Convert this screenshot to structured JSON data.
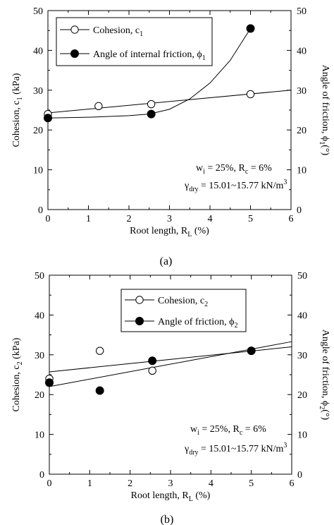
{
  "chart_data": [
    {
      "type": "scatter",
      "panel_label": "(a)",
      "xlabel": "Root length, R",
      "xlabel_sub": "L",
      "xlabel_suffix": " (%)",
      "ylabel_left": "Cohesion, c",
      "ylabel_left_sub": "1",
      "ylabel_left_suffix": " (kPa)",
      "ylabel_right": "Angle of friction, ϕ",
      "ylabel_right_sub": "1",
      "ylabel_right_suffix": "(°)",
      "xlim": [
        0,
        6
      ],
      "ylim_left": [
        0,
        50
      ],
      "ylim_right": [
        0,
        50
      ],
      "xticks": [
        "0",
        "1",
        "2",
        "3",
        "4",
        "5",
        "6"
      ],
      "yticks_left": [
        "0",
        "10",
        "20",
        "30",
        "40",
        "50"
      ],
      "yticks_right": [
        "0",
        "10",
        "20",
        "30",
        "40",
        "50"
      ],
      "legend_position": "top-left",
      "series": [
        {
          "name": "Cohesion, c",
          "name_sub": "1",
          "marker": "open-circle",
          "x": [
            0,
            1.25,
            2.55,
            5.0
          ],
          "y": [
            24,
            26,
            26.5,
            29
          ],
          "fit": [
            [
              0,
              24.3
            ],
            [
              6,
              30
            ]
          ]
        },
        {
          "name": "Angle of internal friction, ϕ",
          "name_sub": "1",
          "marker": "filled-circle",
          "x": [
            0,
            2.55,
            5.0
          ],
          "y": [
            23,
            24,
            45.5
          ],
          "fit": [
            [
              0,
              23
            ],
            [
              1,
              23.2
            ],
            [
              2,
              23.6
            ],
            [
              2.5,
              24
            ],
            [
              3,
              25.2
            ],
            [
              3.5,
              27.8
            ],
            [
              4,
              31.8
            ],
            [
              4.5,
              37.5
            ],
            [
              5,
              45.5
            ]
          ]
        }
      ],
      "annotations": [
        {
          "text": "w",
          "sub": "i",
          "suffix": " = 25%, R",
          "sub2": "c",
          "suffix2": " = 6%"
        },
        {
          "text": "γ",
          "sub": "dry",
          "suffix": " = 15.01~15.77 kN/m",
          "sup": "3"
        }
      ]
    },
    {
      "type": "scatter",
      "panel_label": "(b)",
      "xlabel": "Root length, R",
      "xlabel_sub": "L",
      "xlabel_suffix": " (%)",
      "ylabel_left": "Cohesion, c",
      "ylabel_left_sub": "2",
      "ylabel_left_suffix": " (kPa)",
      "ylabel_right": "Angle of friction, ϕ",
      "ylabel_right_sub": "2",
      "ylabel_right_suffix": "(°)",
      "xlim": [
        0,
        6
      ],
      "ylim_left": [
        0,
        50
      ],
      "ylim_right": [
        0,
        50
      ],
      "xticks": [
        "0",
        "1",
        "2",
        "3",
        "4",
        "5",
        "6"
      ],
      "yticks_left": [
        "0",
        "10",
        "20",
        "30",
        "40",
        "50"
      ],
      "yticks_right": [
        "0",
        "10",
        "20",
        "30",
        "40",
        "50"
      ],
      "legend_position": "top-center",
      "series": [
        {
          "name": "Cohesion, c",
          "name_sub": "2",
          "marker": "open-circle",
          "x": [
            0,
            1.25,
            2.55,
            5.0
          ],
          "y": [
            24,
            31,
            26,
            31
          ],
          "fit": [
            [
              0,
              25.7
            ],
            [
              6,
              32
            ]
          ]
        },
        {
          "name": "Angle of friction, ϕ",
          "name_sub": "2",
          "marker": "filled-circle",
          "x": [
            0,
            1.25,
            2.55,
            5.0
          ],
          "y": [
            23,
            21,
            28.5,
            31
          ],
          "fit": [
            [
              0,
              22
            ],
            [
              6,
              33.3
            ]
          ]
        }
      ],
      "annotations": [
        {
          "text": "w",
          "sub": "i",
          "suffix": " = 25%, R",
          "sub2": "c",
          "suffix2": " = 6%"
        },
        {
          "text": "γ",
          "sub": "dry",
          "suffix": " = 15.01~15.77 kN/m",
          "sup": "3"
        }
      ]
    }
  ]
}
